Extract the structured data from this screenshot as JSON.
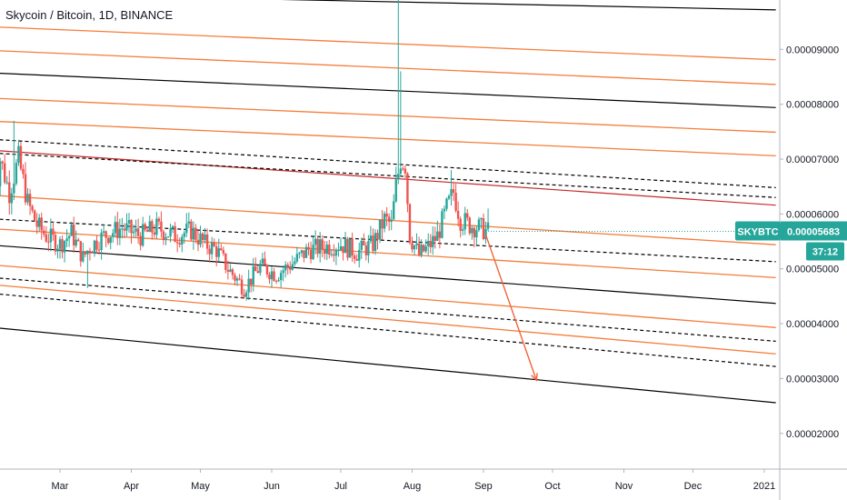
{
  "header": {
    "title": "Skycoin / Bitcoin, 1D, BINANCE"
  },
  "price_tag": {
    "symbol": "SKYBTC",
    "price": "0.00005683",
    "countdown": "37:12"
  },
  "colors": {
    "up": "#26a69a",
    "down": "#ef5350",
    "orange": "#f57c3a",
    "black": "#000000",
    "dark_red": "#c62828",
    "tag_bg": "#26a69a",
    "axis": "#b2b5be",
    "arrow": "#f4633a"
  },
  "chart_data": {
    "type": "candlestick",
    "title": "Skycoin / Bitcoin, 1D, BINANCE",
    "y_ticks": [
      "0.00009000",
      "0.00008000",
      "0.00007000",
      "0.00006000",
      "0.00005000",
      "0.00004000",
      "0.00003000",
      "0.00002000"
    ],
    "x_ticks": [
      "Mar",
      "Apr",
      "May",
      "Jun",
      "Jul",
      "Aug",
      "Sep",
      "Oct",
      "Nov",
      "Dec",
      "2021"
    ],
    "ylim": [
      1.35e-05,
      9.9e-05
    ],
    "last_price": 5.683e-05,
    "channel_lines": [
      {
        "style": "solid",
        "color": "black",
        "start": [
          "2020-02-01",
          0.0001002
        ],
        "end": [
          "2021-01-06",
          9.72e-05
        ]
      },
      {
        "style": "solid",
        "color": "orange",
        "start": [
          "2020-02-01",
          9.41e-05
        ],
        "end": [
          "2021-01-06",
          8.81e-05
        ]
      },
      {
        "style": "solid",
        "color": "orange",
        "start": [
          "2020-02-01",
          8.98e-05
        ],
        "end": [
          "2021-01-06",
          8.36e-05
        ]
      },
      {
        "style": "solid",
        "color": "black",
        "start": [
          "2020-02-01",
          8.57e-05
        ],
        "end": [
          "2021-01-06",
          7.94e-05
        ]
      },
      {
        "style": "solid",
        "color": "orange",
        "start": [
          "2020-02-01",
          8.11e-05
        ],
        "end": [
          "2021-01-06",
          7.49e-05
        ]
      },
      {
        "style": "solid",
        "color": "orange",
        "start": [
          "2020-02-01",
          7.69e-05
        ],
        "end": [
          "2021-01-06",
          7.06e-05
        ]
      },
      {
        "style": "solid",
        "color": "dark_red",
        "start": [
          "2020-02-01",
          7.16e-05
        ],
        "end": [
          "2021-01-06",
          6.16e-05
        ]
      },
      {
        "style": "dashed",
        "color": "black",
        "start": [
          "2020-02-01",
          7.36e-05
        ],
        "end": [
          "2021-01-06",
          6.48e-05
        ]
      },
      {
        "style": "dashed",
        "color": "black",
        "start": [
          "2020-02-01",
          7.11e-05
        ],
        "end": [
          "2021-01-06",
          6.3e-05
        ]
      },
      {
        "style": "solid",
        "color": "orange",
        "start": [
          "2020-02-01",
          6.34e-05
        ],
        "end": [
          "2021-01-06",
          5.44e-05
        ]
      },
      {
        "style": "dashed",
        "color": "black",
        "start": [
          "2020-02-01",
          5.91e-05
        ],
        "end": [
          "2021-01-06",
          5.13e-05
        ]
      },
      {
        "style": "solid",
        "color": "orange",
        "start": [
          "2020-02-01",
          5.73e-05
        ],
        "end": [
          "2021-01-06",
          4.84e-05
        ]
      },
      {
        "style": "solid",
        "color": "black",
        "start": [
          "2020-02-01",
          5.43e-05
        ],
        "end": [
          "2021-01-06",
          4.37e-05
        ]
      },
      {
        "style": "solid",
        "color": "orange",
        "start": [
          "2020-02-01",
          5.07e-05
        ],
        "end": [
          "2021-01-06",
          3.93e-05
        ]
      },
      {
        "style": "dashed",
        "color": "black",
        "start": [
          "2020-02-01",
          4.84e-05
        ],
        "end": [
          "2021-01-06",
          3.68e-05
        ]
      },
      {
        "style": "solid",
        "color": "orange",
        "start": [
          "2020-02-01",
          4.71e-05
        ],
        "end": [
          "2021-01-06",
          3.45e-05
        ]
      },
      {
        "style": "dashed",
        "color": "black",
        "start": [
          "2020-02-01",
          4.55e-05
        ],
        "end": [
          "2021-01-06",
          3.22e-05
        ]
      },
      {
        "style": "solid",
        "color": "black",
        "start": [
          "2020-02-01",
          3.93e-05
        ],
        "end": [
          "2021-01-06",
          2.56e-05
        ]
      }
    ],
    "projection_arrow": {
      "start": [
        "2020-09-02",
        5.62e-05
      ],
      "end": [
        "2020-09-24",
        2.97e-05
      ]
    },
    "price_path": [
      [
        "2020-02-01",
        6.1e-05
      ],
      [
        "2020-02-04",
        7e-05
      ],
      [
        "2020-02-08",
        6.4e-05
      ],
      [
        "2020-02-12",
        7e-05
      ],
      [
        "2020-02-16",
        6.2e-05
      ],
      [
        "2020-02-20",
        5.8e-05
      ],
      [
        "2020-02-24",
        5.6e-05
      ],
      [
        "2020-03-01",
        5.45e-05
      ],
      [
        "2020-03-06",
        5.65e-05
      ],
      [
        "2020-03-11",
        5.2e-05
      ],
      [
        "2020-03-14",
        5.4e-05
      ],
      [
        "2020-03-20",
        5.6e-05
      ],
      [
        "2020-03-28",
        5.75e-05
      ],
      [
        "2020-04-05",
        5.6e-05
      ],
      [
        "2020-04-12",
        5.75e-05
      ],
      [
        "2020-04-20",
        5.6e-05
      ],
      [
        "2020-04-27",
        5.7e-05
      ],
      [
        "2020-05-03",
        5.45e-05
      ],
      [
        "2020-05-08",
        5.35e-05
      ],
      [
        "2020-05-13",
        5e-05
      ],
      [
        "2020-05-20",
        4.65e-05
      ],
      [
        "2020-05-27",
        5.05e-05
      ],
      [
        "2020-06-03",
        4.9e-05
      ],
      [
        "2020-06-10",
        5.1e-05
      ],
      [
        "2020-06-17",
        5.35e-05
      ],
      [
        "2020-06-24",
        5.4e-05
      ],
      [
        "2020-07-01",
        5.45e-05
      ],
      [
        "2020-07-08",
        5.3e-05
      ],
      [
        "2020-07-15",
        5.45e-05
      ],
      [
        "2020-07-20",
        5.9e-05
      ],
      [
        "2020-07-23",
        5.8e-05
      ],
      [
        "2020-07-25",
        6.5e-05
      ],
      [
        "2020-07-27",
        7e-05
      ],
      [
        "2020-07-29",
        6.9e-05
      ],
      [
        "2020-07-31",
        5.6e-05
      ],
      [
        "2020-08-04",
        5.25e-05
      ],
      [
        "2020-08-08",
        5.4e-05
      ],
      [
        "2020-08-12",
        5.6e-05
      ],
      [
        "2020-08-16",
        6.1e-05
      ],
      [
        "2020-08-19",
        6.4e-05
      ],
      [
        "2020-08-22",
        5.9e-05
      ],
      [
        "2020-08-26",
        5.8e-05
      ],
      [
        "2020-08-30",
        5.75e-05
      ],
      [
        "2020-09-03",
        5.68e-05
      ]
    ]
  }
}
